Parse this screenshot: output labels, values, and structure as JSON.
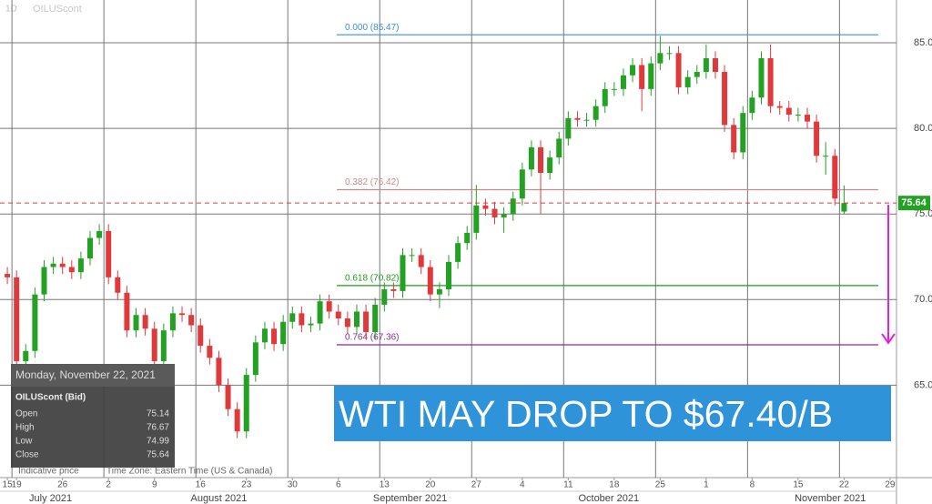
{
  "chart_data": {
    "type": "candlestick",
    "symbol_label": "OILUScont",
    "interval_label": "1D",
    "up_color": "#23a123",
    "down_color": "#e0393b",
    "candles": {
      "open": [
        71.5,
        71.3,
        66.4,
        67.0,
        70.3,
        71.9,
        72.1,
        71.9,
        71.6,
        72.4,
        73.6,
        74.0,
        71.3,
        70.4,
        68.2,
        69.1,
        68.3,
        66.4,
        68.2,
        69.2,
        69.1,
        68.5,
        67.3,
        66.6,
        65.0,
        63.6,
        62.3,
        65.6,
        67.5,
        68.3,
        67.4,
        68.7,
        69.2,
        68.5,
        68.6,
        69.9,
        69.3,
        68.9,
        68.4,
        69.3,
        68.1,
        69.7,
        70.6,
        70.5,
        72.6,
        72.6,
        71.9,
        70.3,
        70.6,
        72.2,
        73.3,
        73.9,
        75.5,
        75.3,
        74.8,
        75.0,
        75.9,
        77.6,
        78.9,
        77.4,
        78.3,
        79.4,
        80.6,
        80.5,
        80.5,
        81.3,
        82.3,
        82.3,
        83.1,
        83.7,
        82.3,
        83.8,
        84.4,
        84.4,
        82.4,
        83.0,
        83.3,
        84.1,
        83.3,
        80.2,
        78.6,
        80.9,
        81.8,
        84.1,
        81.3,
        81.2,
        80.8,
        80.8,
        80.4,
        78.4,
        78.4,
        75.14
      ],
      "high": [
        71.9,
        71.7,
        67.4,
        70.7,
        72.3,
        72.5,
        72.5,
        72.3,
        72.8,
        74.0,
        74.4,
        74.4,
        71.7,
        70.8,
        69.5,
        69.5,
        68.7,
        68.6,
        69.6,
        69.6,
        69.5,
        68.9,
        67.7,
        67.0,
        65.4,
        64.0,
        66.0,
        67.9,
        68.7,
        68.7,
        69.1,
        69.6,
        69.6,
        69.0,
        70.3,
        70.3,
        69.7,
        69.3,
        69.7,
        69.7,
        70.1,
        71.0,
        71.0,
        73.0,
        73.0,
        73.0,
        72.3,
        71.0,
        72.6,
        73.7,
        74.3,
        76.7,
        75.9,
        75.7,
        75.4,
        76.3,
        78.0,
        79.3,
        79.3,
        78.7,
        79.8,
        81.0,
        81.0,
        80.9,
        81.7,
        82.7,
        82.7,
        83.5,
        84.1,
        84.1,
        84.2,
        85.4,
        84.8,
        84.8,
        83.4,
        83.7,
        84.9,
        84.5,
        83.7,
        80.6,
        81.3,
        82.2,
        84.5,
        84.9,
        81.6,
        81.6,
        81.2,
        81.2,
        80.8,
        79.2,
        78.8,
        76.67
      ],
      "low": [
        70.9,
        66.0,
        65.0,
        66.6,
        69.9,
        71.5,
        71.5,
        71.2,
        71.2,
        72.0,
        73.2,
        70.9,
        70.0,
        67.8,
        67.8,
        67.9,
        66.0,
        66.0,
        67.8,
        68.7,
        68.1,
        66.9,
        66.2,
        64.6,
        63.2,
        61.9,
        61.9,
        65.2,
        67.1,
        67.0,
        67.0,
        68.3,
        68.1,
        68.1,
        68.2,
        68.9,
        68.5,
        68.0,
        68.0,
        67.7,
        67.7,
        69.3,
        70.1,
        70.1,
        72.2,
        71.5,
        69.9,
        69.5,
        70.2,
        71.8,
        72.9,
        73.5,
        74.9,
        74.4,
        73.9,
        74.6,
        75.5,
        77.2,
        75.0,
        77.0,
        77.9,
        79.0,
        80.1,
        80.1,
        80.1,
        80.9,
        81.9,
        81.9,
        82.7,
        81.0,
        81.9,
        83.4,
        84.0,
        82.0,
        82.0,
        82.6,
        82.9,
        82.9,
        79.8,
        78.2,
        78.2,
        80.5,
        81.4,
        80.9,
        80.8,
        80.4,
        80.4,
        80.0,
        78.0,
        77.3,
        75.5,
        74.99
      ],
      "close": [
        71.3,
        66.4,
        67.0,
        70.3,
        71.9,
        72.1,
        71.9,
        71.6,
        72.4,
        73.6,
        74.0,
        71.3,
        70.4,
        68.2,
        69.1,
        68.3,
        66.4,
        68.2,
        69.2,
        69.1,
        68.5,
        67.3,
        66.6,
        65.0,
        63.6,
        62.3,
        65.6,
        67.5,
        68.3,
        67.4,
        68.7,
        69.2,
        68.5,
        68.6,
        69.9,
        69.3,
        68.9,
        68.4,
        69.3,
        68.1,
        69.7,
        70.6,
        70.5,
        72.6,
        72.6,
        71.9,
        70.3,
        70.6,
        72.2,
        73.3,
        73.9,
        75.5,
        75.3,
        74.8,
        75.0,
        75.9,
        77.6,
        78.9,
        77.4,
        78.3,
        79.4,
        80.6,
        80.5,
        80.5,
        81.3,
        82.3,
        82.3,
        83.1,
        83.7,
        82.3,
        83.8,
        84.4,
        84.4,
        82.4,
        83.0,
        83.3,
        84.1,
        83.3,
        80.2,
        78.6,
        80.9,
        81.8,
        84.1,
        81.3,
        81.2,
        80.8,
        80.8,
        80.4,
        78.4,
        78.4,
        75.9,
        75.64
      ]
    },
    "xlim": [
      -0.8,
      96.7
    ],
    "xticks": [
      {
        "value": 0,
        "label": "15"
      },
      {
        "value": 1,
        "label": "19"
      },
      {
        "value": 6,
        "label": "26"
      },
      {
        "value": 11,
        "label": "2"
      },
      {
        "value": 16,
        "label": "9"
      },
      {
        "value": 21,
        "label": "16"
      },
      {
        "value": 26,
        "label": "23"
      },
      {
        "value": 31,
        "label": "30"
      },
      {
        "value": 36,
        "label": "6"
      },
      {
        "value": 41,
        "label": "13"
      },
      {
        "value": 46,
        "label": "20"
      },
      {
        "value": 51,
        "label": "27"
      },
      {
        "value": 56,
        "label": "4"
      },
      {
        "value": 61,
        "label": "11"
      },
      {
        "value": 66,
        "label": "18"
      },
      {
        "value": 71,
        "label": "25"
      },
      {
        "value": 76,
        "label": "1"
      },
      {
        "value": 81,
        "label": "8"
      },
      {
        "value": 86,
        "label": "15"
      },
      {
        "value": 91,
        "label": "22"
      },
      {
        "value": 96,
        "label": "29"
      }
    ],
    "month_ticks": [
      {
        "value": 4.7,
        "label": "July 2021"
      },
      {
        "value": 23,
        "label": "August 2021"
      },
      {
        "value": 43.8,
        "label": "September 2021"
      },
      {
        "value": 65.4,
        "label": "October 2021"
      },
      {
        "value": 89.5,
        "label": "November 2021"
      }
    ],
    "ylim": [
      59.6,
      87.5
    ],
    "yticks": [
      {
        "value": 65,
        "label": "65.00"
      },
      {
        "value": 70,
        "label": "70.00"
      },
      {
        "value": 75,
        "label": "75.00"
      },
      {
        "value": 80,
        "label": "80.00"
      },
      {
        "value": 85,
        "label": "85.00"
      }
    ],
    "grid": true,
    "last_price": 75.64,
    "fib_levels": [
      {
        "label": "0.000 (85.47)",
        "value": 85.47,
        "color": "#3b8fd8"
      },
      {
        "label": "0.382 (76.42)",
        "value": 76.42,
        "color": "#c98a8a"
      },
      {
        "label": "0.618 (70.82)",
        "value": 70.82,
        "color": "#1f9a1f"
      },
      {
        "label": "0.764 (67.36)",
        "value": 67.36,
        "color": "#8e2a8e"
      }
    ],
    "annotation": "WTI MAY DROP TO $67.40/B",
    "info_box": {
      "date": "Monday, November 22, 2021",
      "title": "OILUScont (Bid)",
      "rows": [
        [
          "Open",
          75.14
        ],
        [
          "High",
          76.67
        ],
        [
          "Low",
          74.99
        ],
        [
          "Close",
          75.64
        ]
      ]
    },
    "footer_left": "Indicative price",
    "footer_right": "Time Zone: Eastern Time (US & Canada)"
  }
}
